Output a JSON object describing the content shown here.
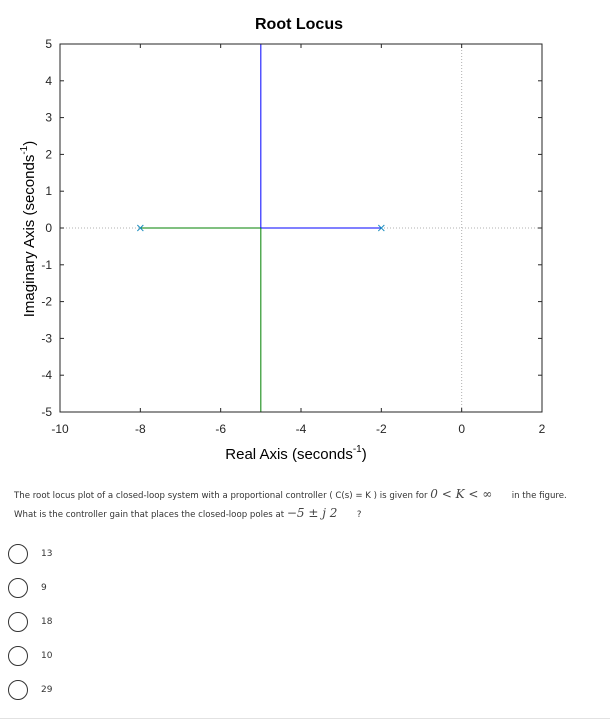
{
  "chart_data": {
    "type": "root-locus",
    "title": "Root Locus",
    "xlabel": "Real Axis (seconds",
    "ylabel": "Imaginary Axis (seconds",
    "label_superscript": "-1",
    "label_close": ")",
    "xlim": [
      -10,
      2
    ],
    "ylim": [
      -5,
      5
    ],
    "xticks": [
      -10,
      -8,
      -6,
      -4,
      -2,
      0,
      2
    ],
    "yticks": [
      -5,
      -4,
      -3,
      -2,
      -1,
      0,
      1,
      2,
      3,
      4,
      5
    ],
    "grid": false,
    "poles": [
      [
        -8,
        0
      ],
      [
        -2,
        0
      ]
    ],
    "series": [
      {
        "color": "#0000ff",
        "segments": [
          [
            [
              -2,
              0
            ],
            [
              -5,
              0
            ]
          ],
          [
            [
              -5,
              0
            ],
            [
              -5,
              5
            ]
          ]
        ]
      },
      {
        "color": "#008000",
        "segments": [
          [
            [
              -8,
              0
            ],
            [
              -5,
              0
            ]
          ],
          [
            [
              -5,
              0
            ],
            [
              -5,
              -5
            ]
          ]
        ]
      }
    ],
    "pole_marker_color": "#1f8fc0",
    "reference_line_color": "#b0b0b0"
  },
  "question": {
    "line1_before": "The root locus plot of a closed-loop system with a proportional controller ( C(s) = K ) is given for",
    "line1_math": "0 < K < ∞",
    "line1_after": "in the figure.",
    "line2_before": "What is the controller gain that places the closed-loop poles at",
    "line2_math": "−5 ± j 2",
    "line2_after": "?"
  },
  "options": [
    "13",
    "9",
    "18",
    "10",
    "29"
  ]
}
